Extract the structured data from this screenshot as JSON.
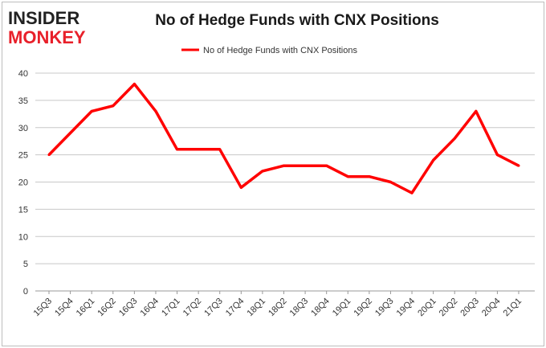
{
  "brand": {
    "line1": "INSIDER",
    "line2": "MONKEY"
  },
  "chart_data": {
    "type": "line",
    "title": "No of Hedge Funds with CNX Positions",
    "xlabel": "",
    "ylabel": "",
    "categories": [
      "15Q3",
      "15Q4",
      "16Q1",
      "16Q2",
      "16Q3",
      "16Q4",
      "17Q1",
      "17Q2",
      "17Q3",
      "17Q4",
      "18Q1",
      "18Q2",
      "18Q3",
      "18Q4",
      "19Q1",
      "19Q2",
      "19Q3",
      "19Q4",
      "20Q1",
      "20Q2",
      "20Q3",
      "20Q4",
      "21Q1"
    ],
    "series": [
      {
        "name": "No of Hedge Funds with CNX Positions",
        "color": "#ff0000",
        "values": [
          25,
          29,
          33,
          34,
          38,
          33,
          26,
          26,
          26,
          19,
          22,
          23,
          23,
          23,
          21,
          21,
          20,
          18,
          24,
          28,
          33,
          25,
          23
        ]
      }
    ],
    "ylim": [
      0,
      40
    ],
    "yticks": [
      0,
      5,
      10,
      15,
      20,
      25,
      30,
      35,
      40
    ],
    "grid": true,
    "legend": "top-center"
  }
}
